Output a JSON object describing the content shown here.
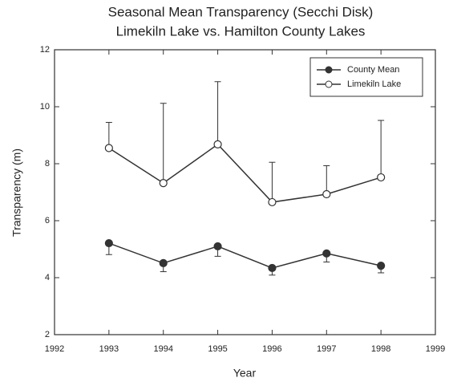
{
  "chart_data": {
    "type": "line",
    "title": "Seasonal Mean Transparency (Secchi Disk)",
    "subtitle": "Limekiln Lake vs. Hamilton County Lakes",
    "x_label": "Year",
    "y_label": "Transparency (m)",
    "x": [
      1993,
      1994,
      1995,
      1996,
      1997,
      1998
    ],
    "series": [
      {
        "name": "County Mean",
        "color": "#333333",
        "marker": "filled",
        "error_direction": "down",
        "values": [
          5.21,
          4.51,
          5.1,
          4.34,
          4.85,
          4.42
        ],
        "errors": [
          0.4,
          0.3,
          0.35,
          0.25,
          0.3,
          0.25
        ]
      },
      {
        "name": "Limekiln Lake",
        "color": "#333333",
        "marker": "open",
        "error_direction": "up",
        "values": [
          8.55,
          7.32,
          8.68,
          6.65,
          6.93,
          7.52
        ],
        "errors": [
          0.9,
          2.8,
          2.2,
          1.4,
          1.0,
          2.0
        ]
      }
    ],
    "xlim": [
      1992,
      1999
    ],
    "xticks": [
      1992,
      1993,
      1994,
      1995,
      1996,
      1997,
      1998,
      1999
    ],
    "ylim": [
      2,
      12
    ],
    "yticks": [
      2,
      4,
      6,
      8,
      10,
      12
    ],
    "legend": "upper right",
    "grid": false
  }
}
